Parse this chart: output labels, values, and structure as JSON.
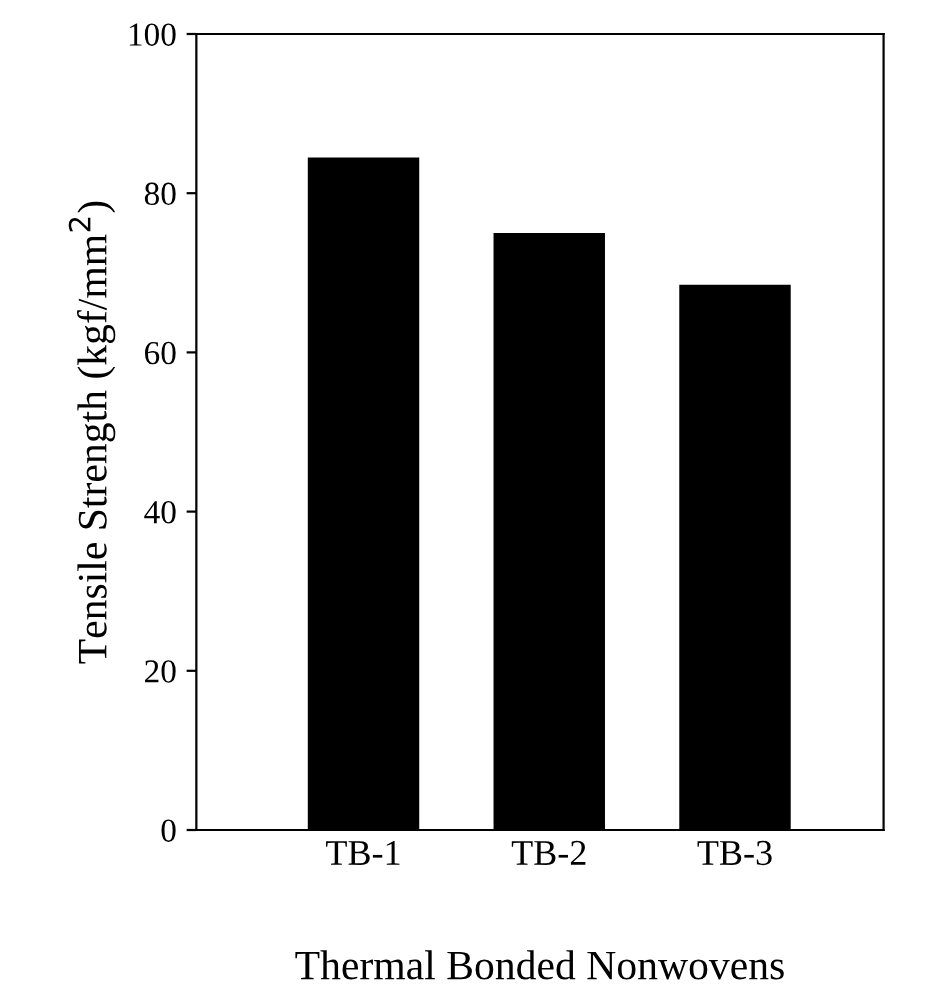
{
  "chart_data": {
    "type": "bar",
    "xlabel": "Thermal Bonded Nonwovens",
    "ylabel": "Tensile Strength (kgf/mm$^{2}$)",
    "categories": [
      "TB-1",
      "TB-2",
      "TB-3"
    ],
    "values": [
      84.5,
      75,
      68.5
    ],
    "color": "#000000",
    "ylim": [
      0,
      100
    ],
    "yticks": [
      0,
      20,
      40,
      60,
      80,
      100
    ],
    "grid": false,
    "legend": false
  }
}
